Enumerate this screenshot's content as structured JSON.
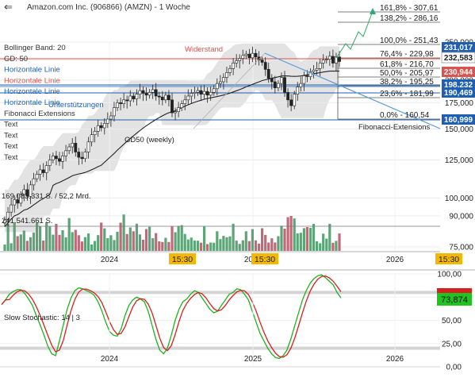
{
  "header": {
    "title": "Amazon.com Inc. (906866) (AMZN) - 1 Woche"
  },
  "legend": {
    "items": [
      {
        "text": "Bollinger Band: 20",
        "color": "#333333"
      },
      {
        "text": "GD: 50",
        "color": "#333333"
      },
      {
        "text": "Horizontale Linie",
        "color": "#1f5fb3"
      },
      {
        "text": "Horizontale Linie",
        "color": "#d9534f"
      },
      {
        "text": "Horizontale Linie",
        "color": "#1f5fb3"
      },
      {
        "text": "Horizontale Linie",
        "color": "#1f5fb3"
      },
      {
        "text": "Fibonacci Extensions",
        "color": "#333333"
      },
      {
        "text": "Text",
        "color": "#333333"
      },
      {
        "text": "Text",
        "color": "#333333"
      },
      {
        "text": "Text",
        "color": "#333333"
      },
      {
        "text": "Text",
        "color": "#333333"
      }
    ]
  },
  "annotations": {
    "widerstand": "Widerstand",
    "unterstuetzungen": "Unterstützungen",
    "gd50": "GD50 (weekly)",
    "fib_ext": "Fibonacci-Extensions",
    "volume_label1": "169.083.331 S. / 52,2 Mrd.",
    "volume_label2": "241.541.661 S."
  },
  "fib_labels": [
    {
      "text": "161,8% - 307,61",
      "value": 307.61
    },
    {
      "text": "138,2% - 286,16",
      "value": 286.16
    },
    {
      "text": "100,0% - 251,43",
      "value": 251.43
    },
    {
      "text": "76,4% - 229,98",
      "value": 229.98
    },
    {
      "text": "61,8% - 216,70",
      "value": 216.7
    },
    {
      "text": "50,0% - 205,97",
      "value": 205.97
    },
    {
      "text": "38,2% - 195,25",
      "value": 195.25
    },
    {
      "text": "23,6% - 181,99",
      "value": 181.99
    },
    {
      "text": "0,0% - 160,54",
      "value": 160.54
    }
  ],
  "price_axis": {
    "ticks": [
      {
        "text": "250,000",
        "value": 250
      },
      {
        "text": "225,000",
        "value": 225
      },
      {
        "text": "200,000",
        "value": 200
      },
      {
        "text": "175,000",
        "value": 175
      },
      {
        "text": "150,000",
        "value": 150
      },
      {
        "text": "125,000",
        "value": 125
      },
      {
        "text": "100,000",
        "value": 100
      },
      {
        "text": "90,000",
        "value": 90
      },
      {
        "text": "75,000",
        "value": 75
      }
    ],
    "badges": [
      {
        "text": "231,017",
        "value": 231.017,
        "color": "#1f5fb3"
      },
      {
        "text": "232,583",
        "value": 226.5,
        "color": "#ffffff",
        "text_color": "#222222",
        "border": "#999999"
      },
      {
        "text": "230,944",
        "value": 214.5,
        "color": "#d9534f"
      },
      {
        "text": "198,232",
        "value": 198.232,
        "color": "#1f5fb3"
      },
      {
        "text": "190,469",
        "value": 190.469,
        "color": "#1f5fb3"
      },
      {
        "text": "160,999",
        "value": 160.999,
        "color": "#1f5fb3"
      }
    ]
  },
  "time_axis": {
    "labels": [
      "2024",
      "2025",
      "2026"
    ],
    "badges": [
      "15:30",
      "15:30",
      "15:30"
    ]
  },
  "stoch": {
    "label": "Slow Stochastic: 14 | 3",
    "ticks": [
      "100,00",
      "75,00",
      "50,00",
      "25,00",
      "0,00"
    ],
    "badge_value": "73,874",
    "badge_color": "#21c321"
  },
  "colors": {
    "up": "#2e8b57",
    "down": "#c0392b",
    "fib": "#555555",
    "resistance": "#d9534f",
    "support": "#1f5fb3",
    "trend": "#5b9bd5",
    "band": "#d9d9d9",
    "ma": "#222222",
    "stoch_k": "#1fb31f",
    "stoch_d": "#d62020",
    "time_badge": "#f5b800"
  },
  "chart_data": {
    "type": "candlestick",
    "title": "Amazon.com Inc. (906866) (AMZN) - 1 Woche",
    "y_scale": "log",
    "ylim": [
      75,
      320
    ],
    "fibonacci_levels": [
      {
        "pct": "0,0%",
        "value": 160.54
      },
      {
        "pct": "23,6%",
        "value": 181.99
      },
      {
        "pct": "38,2%",
        "value": 195.25
      },
      {
        "pct": "50,0%",
        "value": 205.97
      },
      {
        "pct": "61,8%",
        "value": 216.7
      },
      {
        "pct": "76,4%",
        "value": 229.98
      },
      {
        "pct": "100,0%",
        "value": 251.43
      },
      {
        "pct": "138,2%",
        "value": 286.16
      },
      {
        "pct": "161,8%",
        "value": 307.61
      }
    ],
    "horizontal_lines": [
      {
        "value": 231.017,
        "role": "Widerstand"
      },
      {
        "value": 198.232,
        "role": "Unterstützungen"
      },
      {
        "value": 190.469,
        "role": "Unterstützungen"
      },
      {
        "value": 160.999,
        "role": "Unterstützungen"
      }
    ],
    "closes": [
      88,
      92,
      96,
      99,
      97,
      102,
      105,
      101,
      108,
      112,
      115,
      118,
      116,
      121,
      125,
      128,
      126,
      124,
      128,
      132,
      135,
      138,
      131,
      127,
      126,
      131,
      139,
      145,
      148,
      153,
      151,
      155,
      159,
      162,
      170,
      175,
      174,
      178,
      177,
      182,
      179,
      184,
      188,
      185,
      183,
      186,
      189,
      182,
      181,
      178,
      183,
      178,
      165,
      166,
      170,
      174,
      178,
      182,
      185,
      186,
      188,
      184,
      187,
      183,
      186,
      190,
      196,
      198,
      203,
      209,
      214,
      221,
      224,
      227,
      231,
      233,
      228,
      234,
      229,
      225,
      222,
      213,
      202,
      198,
      191,
      196,
      203,
      186,
      178,
      172,
      184,
      192,
      196,
      205,
      204,
      210,
      212,
      214,
      221,
      225,
      226,
      230,
      221,
      229,
      223
    ],
    "stochastic_k": [
      67,
      72,
      78,
      81,
      83,
      83,
      79,
      73,
      66,
      55,
      45,
      34,
      22,
      14,
      12,
      28,
      45,
      62,
      74,
      82,
      85,
      84,
      82,
      80,
      77,
      70,
      60,
      48,
      38,
      34,
      33,
      41,
      55,
      66,
      72,
      75,
      73,
      70,
      60,
      45,
      30,
      18,
      14,
      20,
      34,
      50,
      62,
      70,
      73,
      78,
      82,
      80,
      74,
      68,
      62,
      58,
      60,
      66,
      72,
      78,
      80,
      84,
      83,
      78,
      72,
      60,
      48,
      36,
      28,
      20,
      14,
      10,
      9,
      12,
      18,
      30,
      44,
      58,
      72,
      82,
      90,
      95,
      98,
      99,
      96,
      92,
      88,
      80,
      74
    ]
  }
}
